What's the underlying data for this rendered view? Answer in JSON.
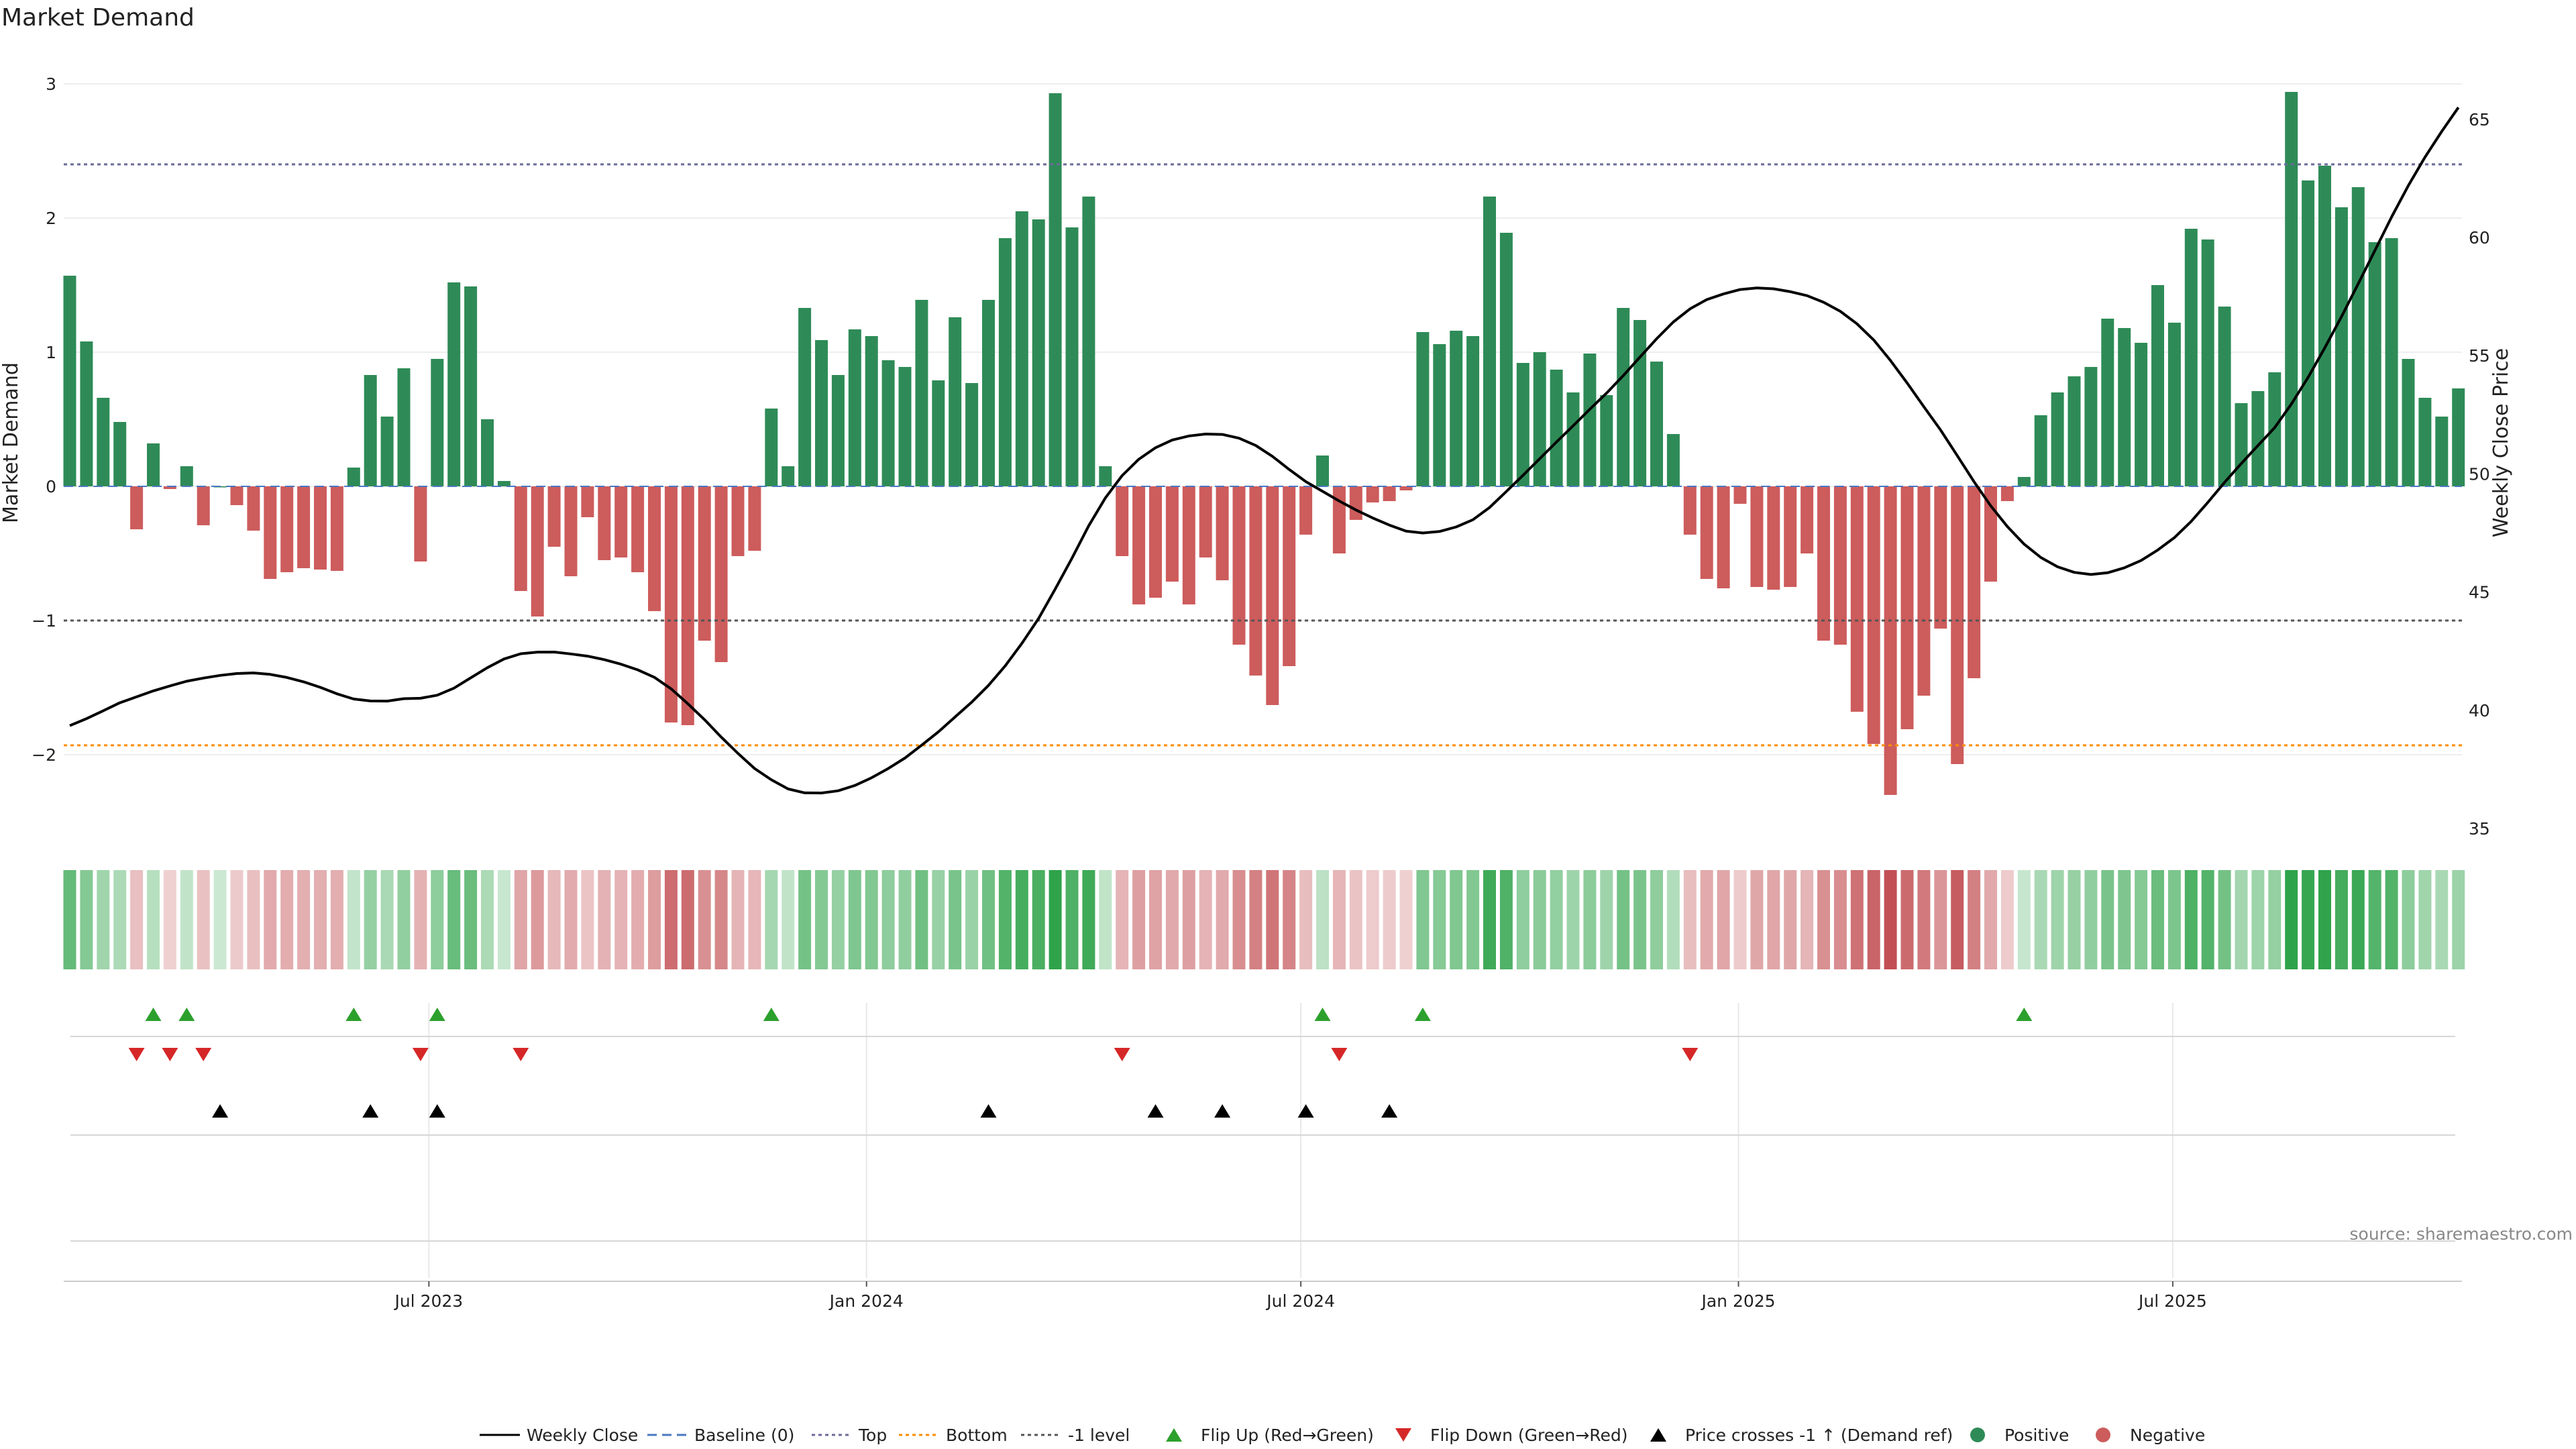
{
  "chart_data": {
    "type": "bar",
    "title": "Market Demand",
    "ylabel_left": "Market Demand",
    "ylabel_right": "Weekly Close Price",
    "y_left_range": [
      -2.55,
      3.0
    ],
    "y_left_ticks": [
      3,
      2,
      1,
      0,
      -1,
      -2
    ],
    "y_right_range": [
      35,
      66.5
    ],
    "y_right_ticks": [
      65,
      60,
      55,
      50,
      45,
      40,
      35
    ],
    "reference_lines": {
      "top": 2.4,
      "bottom": -1.93,
      "minus_one": -1.0,
      "baseline": 0
    },
    "x_tick_labels": [
      "Jul 2023",
      "Jan 2024",
      "Jul 2024",
      "Jan 2025",
      "Jul 2025"
    ],
    "x_tick_week_index": [
      21.5,
      47.7,
      73.7,
      99.9,
      125.9
    ],
    "demand": [
      1.57,
      1.08,
      0.66,
      0.48,
      -0.32,
      0.32,
      -0.02,
      0.15,
      -0.29,
      0,
      -0.14,
      -0.33,
      -0.69,
      -0.64,
      -0.61,
      -0.62,
      -0.63,
      0.14,
      0.83,
      0.52,
      0.88,
      -0.56,
      0.95,
      1.52,
      1.49,
      0.5,
      0.04,
      -0.78,
      -0.97,
      -0.45,
      -0.67,
      -0.23,
      -0.55,
      -0.53,
      -0.64,
      -0.93,
      -1.76,
      -1.78,
      -1.15,
      -1.31,
      -0.52,
      -0.48,
      0.58,
      0.15,
      1.33,
      1.09,
      0.83,
      1.17,
      1.12,
      0.94,
      0.89,
      1.39,
      0.79,
      1.26,
      0.77,
      1.39,
      1.85,
      2.05,
      1.99,
      2.93,
      1.93,
      2.16,
      0.15,
      -0.52,
      -0.88,
      -0.83,
      -0.71,
      -0.88,
      -0.53,
      -0.7,
      -1.18,
      -1.41,
      -1.63,
      -1.34,
      -0.36,
      0.23,
      -0.5,
      -0.25,
      -0.12,
      -0.11,
      -0.03,
      1.15,
      1.06,
      1.16,
      1.12,
      2.16,
      1.89,
      0.92,
      1.0,
      0.87,
      0.7,
      0.99,
      0.68,
      1.33,
      1.24,
      0.93,
      0.39,
      -0.36,
      -0.69,
      -0.76,
      -0.13,
      -0.75,
      -0.77,
      -0.75,
      -0.5,
      -1.15,
      -1.18,
      -1.68,
      -1.92,
      -2.3,
      -1.81,
      -1.56,
      -1.06,
      -2.07,
      -1.43,
      -0.71,
      -0.11,
      0.07,
      0.53,
      0.7,
      0.82,
      0.89,
      1.25,
      1.18,
      1.07,
      1.5,
      1.22,
      1.92,
      1.84,
      1.34,
      0.62,
      0.71,
      0.85,
      2.94,
      2.28,
      2.39,
      2.08,
      2.23,
      1.82,
      1.85,
      0.95,
      0.66,
      0.52,
      0.73
    ],
    "flip_up_week_index": [
      5,
      7,
      17,
      22,
      42,
      75,
      81,
      117
    ],
    "flip_down_week_index": [
      4,
      6,
      8,
      21,
      27,
      63,
      76,
      97
    ],
    "price_cross_week_index": [
      9,
      18,
      22,
      55,
      65,
      69,
      74,
      79
    ],
    "legend": [
      {
        "label": "Weekly Close"
      },
      {
        "label": "Baseline (0)"
      },
      {
        "label": "Top"
      },
      {
        "label": "Bottom"
      },
      {
        "label": "-1 level"
      },
      {
        "label": "Flip Up (Red→Green)"
      },
      {
        "label": "Flip Down (Green→Red)"
      },
      {
        "label": "Price crosses -1 ↑ (Demand ref)"
      },
      {
        "label": "Positive"
      },
      {
        "label": "Negative"
      }
    ],
    "source": "source: sharemaestro.com"
  },
  "colors": {
    "positive": "#2e8b57",
    "negative": "#cd5c5c",
    "flip_up": "#2ca02c",
    "flip_down": "#d62728",
    "price_line": "#000000",
    "top_line": "#6a6a9a",
    "bottom_line": "#ff8c00",
    "baseline": "#4a78c2",
    "minus_one_line": "#555555"
  }
}
